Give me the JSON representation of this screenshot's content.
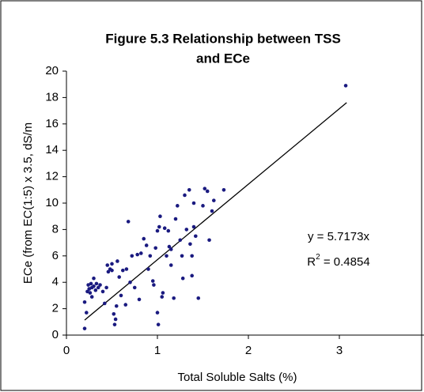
{
  "chart_data": {
    "type": "scatter",
    "title": [
      "Figure 5.3 Relationship between TSS",
      "and ECe"
    ],
    "x_label": "Total Soluble Salts (%)",
    "y_label": "ECe (from EC(1:5) x 3.5, dS/m",
    "color": "#1a1a80",
    "x": [
      0.2,
      0.2,
      0.22,
      0.23,
      0.24,
      0.25,
      0.26,
      0.27,
      0.28,
      0.28,
      0.3,
      0.3,
      0.32,
      0.33,
      0.35,
      0.37,
      0.4,
      0.42,
      0.44,
      0.45,
      0.46,
      0.48,
      0.5,
      0.52,
      0.53,
      0.54,
      0.55,
      0.56,
      0.58,
      0.6,
      0.62,
      0.65,
      0.66,
      0.68,
      0.7,
      0.72,
      0.75,
      0.78,
      0.8,
      0.82,
      0.85,
      0.88,
      0.9,
      0.92,
      0.95,
      0.96,
      0.98,
      1.0,
      1.0,
      1.01,
      1.02,
      1.03,
      1.05,
      1.06,
      1.08,
      1.1,
      1.12,
      1.13,
      1.15,
      1.18,
      1.2,
      1.22,
      1.25,
      1.27,
      1.28,
      1.3,
      1.32,
      1.35,
      1.36,
      1.38,
      1.4,
      1.42,
      1.45,
      1.5,
      1.52,
      1.55,
      1.57,
      1.6,
      1.62,
      1.73,
      3.07,
      0.25,
      0.5,
      1.15,
      1.38,
      1.4
    ],
    "values": [
      2.5,
      0.5,
      1.7,
      3.3,
      3.8,
      3.5,
      3.2,
      3.9,
      2.9,
      3.6,
      4.3,
      3.7,
      3.4,
      3.9,
      3.6,
      3.8,
      3.3,
      2.4,
      3.6,
      5.3,
      4.8,
      5.0,
      4.9,
      1.6,
      0.8,
      1.2,
      2.2,
      5.6,
      4.4,
      3.0,
      4.9,
      2.3,
      5.0,
      8.6,
      4.0,
      6.0,
      3.6,
      6.1,
      2.7,
      6.2,
      7.3,
      6.8,
      5.0,
      6.0,
      4.1,
      3.8,
      6.6,
      7.9,
      1.7,
      0.8,
      8.2,
      9.0,
      2.9,
      3.2,
      8.1,
      6.0,
      7.9,
      6.7,
      5.3,
      2.8,
      8.8,
      9.8,
      7.2,
      6.0,
      4.3,
      10.6,
      8.0,
      11.0,
      6.9,
      4.5,
      8.2,
      7.5,
      2.8,
      9.8,
      11.1,
      10.9,
      7.2,
      9.4,
      10.2,
      11.0,
      18.9,
      3.5,
      5.4,
      6.5,
      6.0,
      10.0
    ],
    "trendline": {
      "x": [
        0.2,
        3.08
      ],
      "values": [
        1.14,
        17.61
      ],
      "color": "#000000"
    },
    "equation": "y = 5.7173x",
    "r2": {
      "base": "R",
      "sup": "2",
      "rest": " = 0.4854"
    },
    "xlim": [
      0,
      4
    ],
    "xticks": [
      0,
      1,
      2,
      3,
      4
    ],
    "ylim": [
      0,
      20
    ],
    "yticks": [
      0,
      2,
      4,
      6,
      8,
      10,
      12,
      14,
      16,
      18,
      20
    ],
    "grid": false
  }
}
